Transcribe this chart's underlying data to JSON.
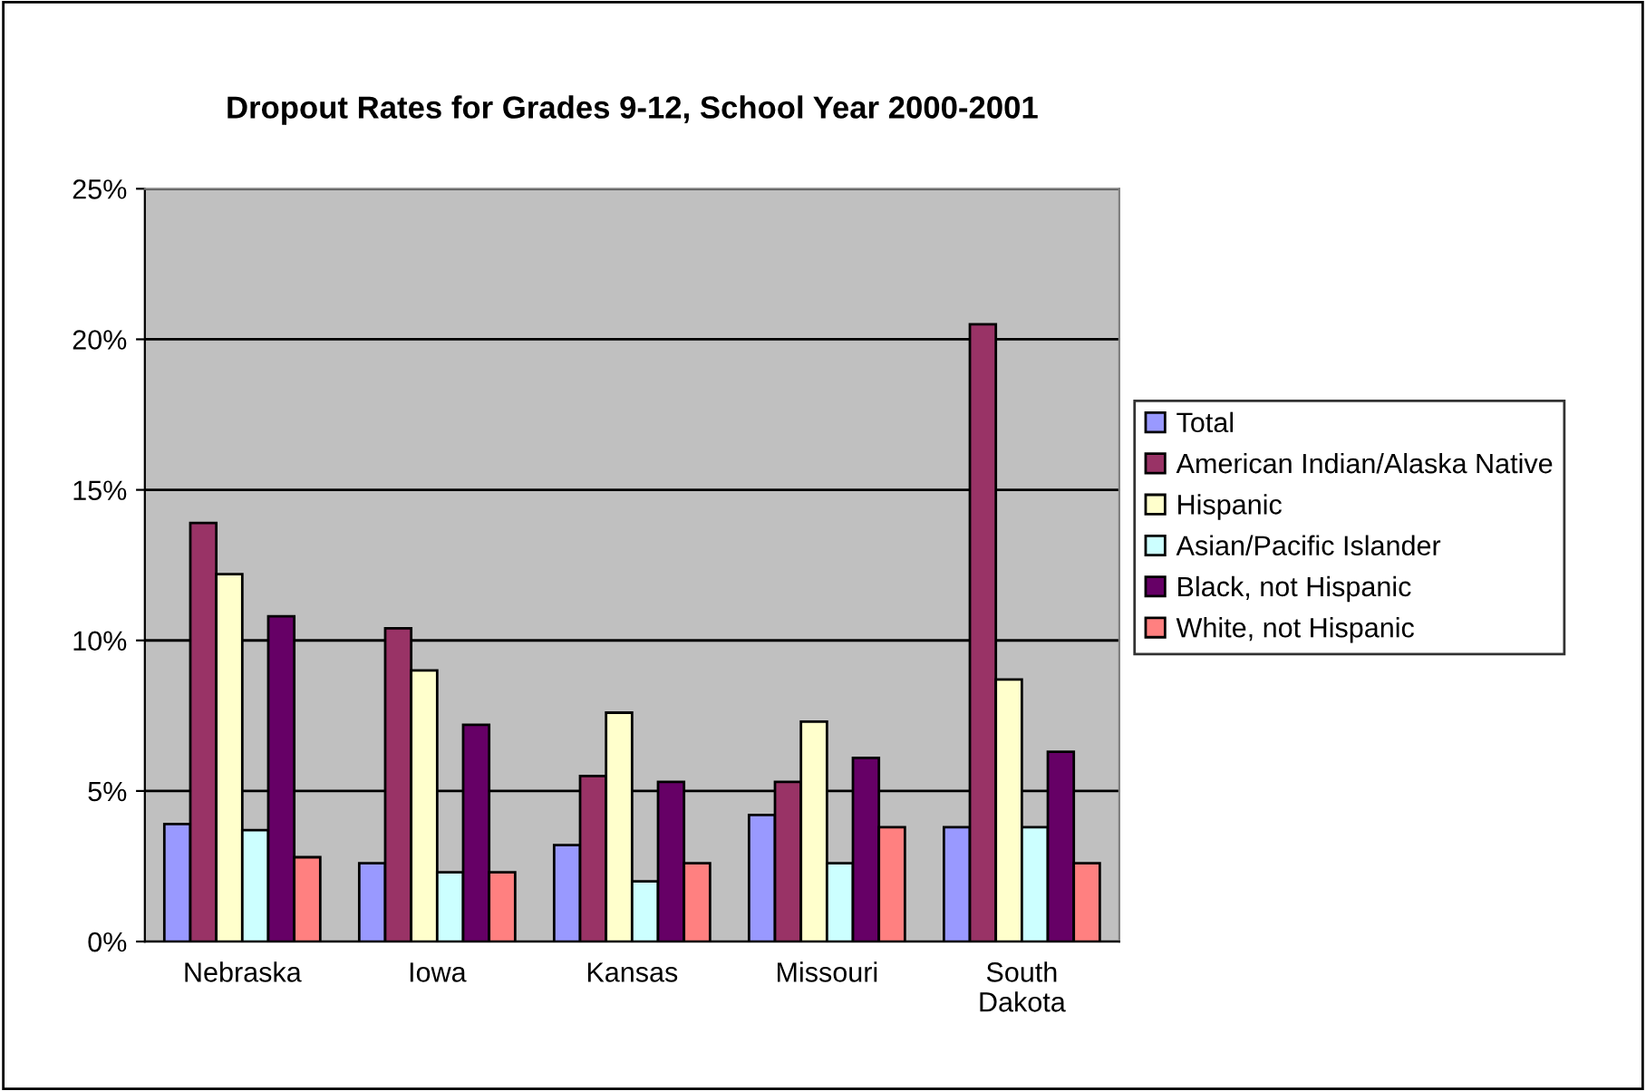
{
  "chart_data": {
    "type": "bar",
    "title": "Dropout Rates for Grades 9-12, School Year 2000-2001",
    "categories": [
      "Nebraska",
      "Iowa",
      "Kansas",
      "Missouri",
      "South\nDakota"
    ],
    "series": [
      {
        "name": "Total",
        "color": "#9999ff",
        "values": [
          3.9,
          2.6,
          3.2,
          4.2,
          3.8
        ]
      },
      {
        "name": "American Indian/Alaska Native",
        "color": "#993366",
        "values": [
          13.9,
          10.4,
          5.5,
          5.3,
          20.5
        ]
      },
      {
        "name": "Hispanic",
        "color": "#ffffcc",
        "values": [
          12.2,
          9.0,
          7.6,
          7.3,
          8.7
        ]
      },
      {
        "name": "Asian/Pacific Islander",
        "color": "#ccffff",
        "values": [
          3.7,
          2.3,
          2.0,
          2.6,
          3.8
        ]
      },
      {
        "name": "Black, not Hispanic",
        "color": "#660066",
        "values": [
          10.8,
          7.2,
          5.3,
          6.1,
          6.3
        ]
      },
      {
        "name": "White, not Hispanic",
        "color": "#ff8080",
        "values": [
          2.8,
          2.3,
          2.6,
          3.8,
          2.6
        ]
      }
    ],
    "ylim": [
      0,
      25
    ],
    "yticks": [
      {
        "value": 0,
        "label": "0%"
      },
      {
        "value": 5,
        "label": "5%"
      },
      {
        "value": 10,
        "label": "10%"
      },
      {
        "value": 15,
        "label": "15%"
      },
      {
        "value": 20,
        "label": "20%"
      },
      {
        "value": 25,
        "label": "25%"
      }
    ],
    "grid": "y",
    "legend": "right"
  }
}
